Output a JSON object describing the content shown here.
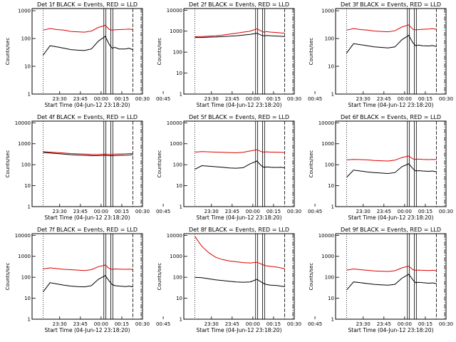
{
  "chart_data": [
    {
      "type": "line",
      "title": "Det 1f BLACK = Events, RED = LLD",
      "ylabel": "Counts/sec",
      "xlabel": "Start Time (04-Jun-12 23:18:20)",
      "x_ticks": [
        "23:30",
        "23:45",
        "00:00",
        "00:15",
        "00:30",
        "00:45"
      ],
      "y_ticks": [
        "1",
        "10",
        "100",
        "1000"
      ],
      "yscale": "log",
      "ylim": [
        1,
        1200
      ],
      "series": [
        {
          "color": "#000000",
          "x": [
            0,
            5,
            10,
            15,
            20,
            25,
            30,
            35,
            40,
            45,
            48,
            50,
            52,
            55,
            60,
            62,
            65
          ],
          "y": [
            25,
            55,
            50,
            45,
            40,
            38,
            37,
            42,
            80,
            120,
            60,
            45,
            48,
            42,
            42,
            45,
            40
          ]
        },
        {
          "color": "#dd0000",
          "x": [
            0,
            5,
            10,
            15,
            20,
            25,
            30,
            35,
            40,
            45,
            48,
            50,
            52,
            55,
            60,
            62,
            65
          ],
          "y": [
            200,
            230,
            210,
            200,
            180,
            175,
            170,
            185,
            250,
            300,
            210,
            200,
            205,
            210,
            215,
            220,
            210
          ]
        }
      ]
    },
    {
      "type": "line",
      "title": "Det 2f BLACK = Events, RED = LLD",
      "ylabel": "Counts/sec",
      "xlabel": "Start Time (04-Jun-12 23:18:20)",
      "x_ticks": [
        "23:30",
        "23:45",
        "00:00",
        "00:15",
        "00:30",
        "00:45"
      ],
      "y_ticks": [
        "1",
        "10",
        "100",
        "1000",
        "10000"
      ],
      "yscale": "log",
      "ylim": [
        1,
        12000
      ],
      "series": [
        {
          "color": "#000000",
          "x": [
            0,
            5,
            10,
            15,
            20,
            25,
            30,
            35,
            40,
            45,
            48,
            50,
            52,
            55,
            60,
            62,
            65
          ],
          "y": [
            500,
            500,
            520,
            530,
            550,
            580,
            600,
            650,
            700,
            800,
            650,
            600,
            620,
            600,
            580,
            570,
            560
          ]
        },
        {
          "color": "#dd0000",
          "x": [
            0,
            5,
            10,
            15,
            20,
            25,
            30,
            35,
            40,
            45,
            48,
            50,
            52,
            55,
            60,
            62,
            65
          ],
          "y": [
            550,
            560,
            580,
            600,
            650,
            720,
            800,
            900,
            1000,
            1300,
            1000,
            900,
            950,
            900,
            850,
            830,
            800
          ]
        }
      ]
    },
    {
      "type": "line",
      "title": "Det 3f BLACK = Events, RED = LLD",
      "ylabel": "Counts/sec",
      "xlabel": "Start Time (04-Jun-12 23:18:20)",
      "x_ticks": [
        "23:30",
        "23:45",
        "00:00",
        "00:15",
        "00:30",
        "00:45"
      ],
      "y_ticks": [
        "1",
        "10",
        "100",
        "1000"
      ],
      "yscale": "log",
      "ylim": [
        1,
        1200
      ],
      "series": [
        {
          "color": "#000000",
          "x": [
            0,
            5,
            10,
            15,
            20,
            25,
            30,
            35,
            40,
            45,
            48,
            50,
            52,
            55,
            60,
            62,
            65
          ],
          "y": [
            30,
            65,
            60,
            55,
            50,
            48,
            46,
            50,
            90,
            130,
            70,
            55,
            58,
            55,
            54,
            56,
            52
          ]
        },
        {
          "color": "#dd0000",
          "x": [
            0,
            5,
            10,
            15,
            20,
            25,
            30,
            35,
            40,
            45,
            48,
            50,
            52,
            55,
            60,
            62,
            65
          ],
          "y": [
            200,
            230,
            210,
            200,
            185,
            180,
            175,
            190,
            260,
            310,
            215,
            205,
            210,
            215,
            220,
            225,
            215
          ]
        }
      ]
    },
    {
      "type": "line",
      "title": "Det 4f BLACK = Events, RED = LLD",
      "ylabel": "Counts/sec",
      "xlabel": "Start Time (04-Jun-12 23:18:20)",
      "x_ticks": [
        "23:30",
        "23:45",
        "00:00",
        "00:15",
        "00:30",
        "00:45"
      ],
      "y_ticks": [
        "1",
        "10",
        "100",
        "1000",
        "10000"
      ],
      "yscale": "log",
      "ylim": [
        1,
        12000
      ],
      "series": [
        {
          "color": "#000000",
          "x": [
            0,
            5,
            10,
            15,
            20,
            25,
            30,
            35,
            40,
            45,
            48,
            50,
            52,
            55,
            60,
            62,
            65
          ],
          "y": [
            380,
            360,
            340,
            320,
            300,
            290,
            280,
            270,
            270,
            280,
            270,
            270,
            275,
            280,
            285,
            290,
            300
          ]
        },
        {
          "color": "#dd0000",
          "x": [
            0,
            5,
            10,
            15,
            20,
            25,
            30,
            35,
            40,
            45,
            48,
            50,
            52,
            55,
            60,
            62,
            65
          ],
          "y": [
            420,
            400,
            380,
            360,
            340,
            330,
            320,
            310,
            310,
            320,
            310,
            315,
            320,
            325,
            330,
            340,
            350
          ]
        }
      ]
    },
    {
      "type": "line",
      "title": "Det 5f BLACK = Events, RED = LLD",
      "ylabel": "Counts/sec",
      "xlabel": "Start Time (04-Jun-12 23:18:20)",
      "x_ticks": [
        "23:30",
        "23:45",
        "00:00",
        "00:15",
        "00:30",
        "00:45"
      ],
      "y_ticks": [
        "1",
        "10",
        "100",
        "1000",
        "10000"
      ],
      "yscale": "log",
      "ylim": [
        1,
        12000
      ],
      "series": [
        {
          "color": "#000000",
          "x": [
            0,
            5,
            10,
            15,
            20,
            25,
            30,
            35,
            40,
            45,
            48,
            50,
            52,
            55,
            60,
            62,
            65
          ],
          "y": [
            60,
            90,
            85,
            80,
            75,
            70,
            68,
            72,
            110,
            150,
            90,
            75,
            78,
            75,
            74,
            76,
            72
          ]
        },
        {
          "color": "#dd0000",
          "x": [
            0,
            5,
            10,
            15,
            20,
            25,
            30,
            35,
            40,
            45,
            48,
            50,
            52,
            55,
            60,
            62,
            65
          ],
          "y": [
            400,
            420,
            410,
            400,
            390,
            380,
            370,
            390,
            450,
            520,
            420,
            400,
            410,
            400,
            395,
            390,
            380
          ]
        }
      ]
    },
    {
      "type": "line",
      "title": "Det 6f BLACK = Events, RED = LLD",
      "ylabel": "Counts/sec",
      "xlabel": "Start Time (04-Jun-12 23:18:20)",
      "x_ticks": [
        "23:30",
        "23:45",
        "00:00",
        "00:15",
        "00:30",
        "00:45"
      ],
      "y_ticks": [
        "1",
        "10",
        "100",
        "1000",
        "10000"
      ],
      "yscale": "log",
      "ylim": [
        1,
        12000
      ],
      "series": [
        {
          "color": "#000000",
          "x": [
            0,
            5,
            10,
            15,
            20,
            25,
            30,
            35,
            40,
            45,
            48,
            50,
            52,
            55,
            60,
            62,
            65
          ],
          "y": [
            25,
            55,
            50,
            45,
            42,
            40,
            38,
            42,
            80,
            110,
            65,
            50,
            52,
            50,
            48,
            50,
            46
          ]
        },
        {
          "color": "#dd0000",
          "x": [
            0,
            5,
            10,
            15,
            20,
            25,
            30,
            35,
            40,
            45,
            48,
            50,
            52,
            55,
            60,
            62,
            65
          ],
          "y": [
            170,
            180,
            175,
            170,
            160,
            155,
            150,
            165,
            220,
            260,
            190,
            180,
            185,
            180,
            175,
            180,
            175
          ]
        }
      ]
    },
    {
      "type": "line",
      "title": "Det 7f BLACK = Events, RED = LLD",
      "ylabel": "Counts/sec",
      "xlabel": "Start Time (04-Jun-12 23:18:20)",
      "x_ticks": [
        "23:30",
        "23:45",
        "00:00",
        "00:15",
        "00:30",
        "00:45"
      ],
      "y_ticks": [
        "1",
        "10",
        "100",
        "1000",
        "10000"
      ],
      "yscale": "log",
      "ylim": [
        1,
        12000
      ],
      "series": [
        {
          "color": "#000000",
          "x": [
            0,
            5,
            10,
            15,
            20,
            25,
            30,
            35,
            40,
            45,
            48,
            50,
            52,
            55,
            60,
            62,
            65
          ],
          "y": [
            20,
            55,
            48,
            42,
            38,
            36,
            35,
            40,
            80,
            120,
            65,
            45,
            40,
            38,
            36,
            38,
            35
          ]
        },
        {
          "color": "#dd0000",
          "x": [
            0,
            5,
            10,
            15,
            20,
            25,
            30,
            35,
            40,
            45,
            48,
            50,
            52,
            55,
            60,
            62,
            65
          ],
          "y": [
            250,
            280,
            260,
            240,
            230,
            220,
            210,
            230,
            320,
            380,
            260,
            240,
            250,
            245,
            240,
            245,
            235
          ]
        }
      ]
    },
    {
      "type": "line",
      "title": "Det 8f BLACK = Events, RED = LLD",
      "ylabel": "Counts/sec",
      "xlabel": "Start Time (04-Jun-12 23:18:20)",
      "x_ticks": [
        "23:30",
        "23:45",
        "00:00",
        "00:15",
        "00:30",
        "00:45"
      ],
      "y_ticks": [
        "1",
        "10",
        "100",
        "1000",
        "10000"
      ],
      "yscale": "log",
      "ylim": [
        1,
        12000
      ],
      "series": [
        {
          "color": "#000000",
          "x": [
            0,
            5,
            10,
            15,
            20,
            25,
            30,
            35,
            40,
            45,
            48,
            50,
            52,
            55,
            60,
            62,
            65
          ],
          "y": [
            100,
            95,
            85,
            75,
            70,
            65,
            60,
            58,
            60,
            80,
            60,
            50,
            45,
            42,
            40,
            38,
            36
          ]
        },
        {
          "color": "#dd0000",
          "x": [
            0,
            5,
            10,
            15,
            20,
            25,
            30,
            35,
            40,
            45,
            48,
            50,
            52,
            55,
            60,
            62,
            65
          ],
          "y": [
            9000,
            3000,
            1500,
            900,
            700,
            600,
            550,
            500,
            480,
            520,
            430,
            380,
            350,
            330,
            300,
            280,
            260
          ]
        }
      ]
    },
    {
      "type": "line",
      "title": "Det 9f BLACK = Events, RED = LLD",
      "ylabel": "Counts/sec",
      "xlabel": "Start Time (04-Jun-12 23:18:20)",
      "x_ticks": [
        "23:30",
        "23:45",
        "00:00",
        "00:15",
        "00:30",
        "00:45"
      ],
      "y_ticks": [
        "1",
        "10",
        "100",
        "1000",
        "10000"
      ],
      "yscale": "log",
      "ylim": [
        1,
        12000
      ],
      "series": [
        {
          "color": "#000000",
          "x": [
            0,
            5,
            10,
            15,
            20,
            25,
            30,
            35,
            40,
            45,
            48,
            50,
            52,
            55,
            60,
            62,
            65
          ],
          "y": [
            25,
            60,
            55,
            50,
            46,
            44,
            42,
            46,
            90,
            140,
            75,
            55,
            58,
            55,
            52,
            54,
            50
          ]
        },
        {
          "color": "#dd0000",
          "x": [
            0,
            5,
            10,
            15,
            20,
            25,
            30,
            35,
            40,
            45,
            48,
            50,
            52,
            55,
            60,
            62,
            65
          ],
          "y": [
            220,
            250,
            230,
            215,
            200,
            195,
            190,
            205,
            280,
            340,
            230,
            215,
            220,
            215,
            210,
            215,
            205
          ]
        }
      ]
    }
  ]
}
